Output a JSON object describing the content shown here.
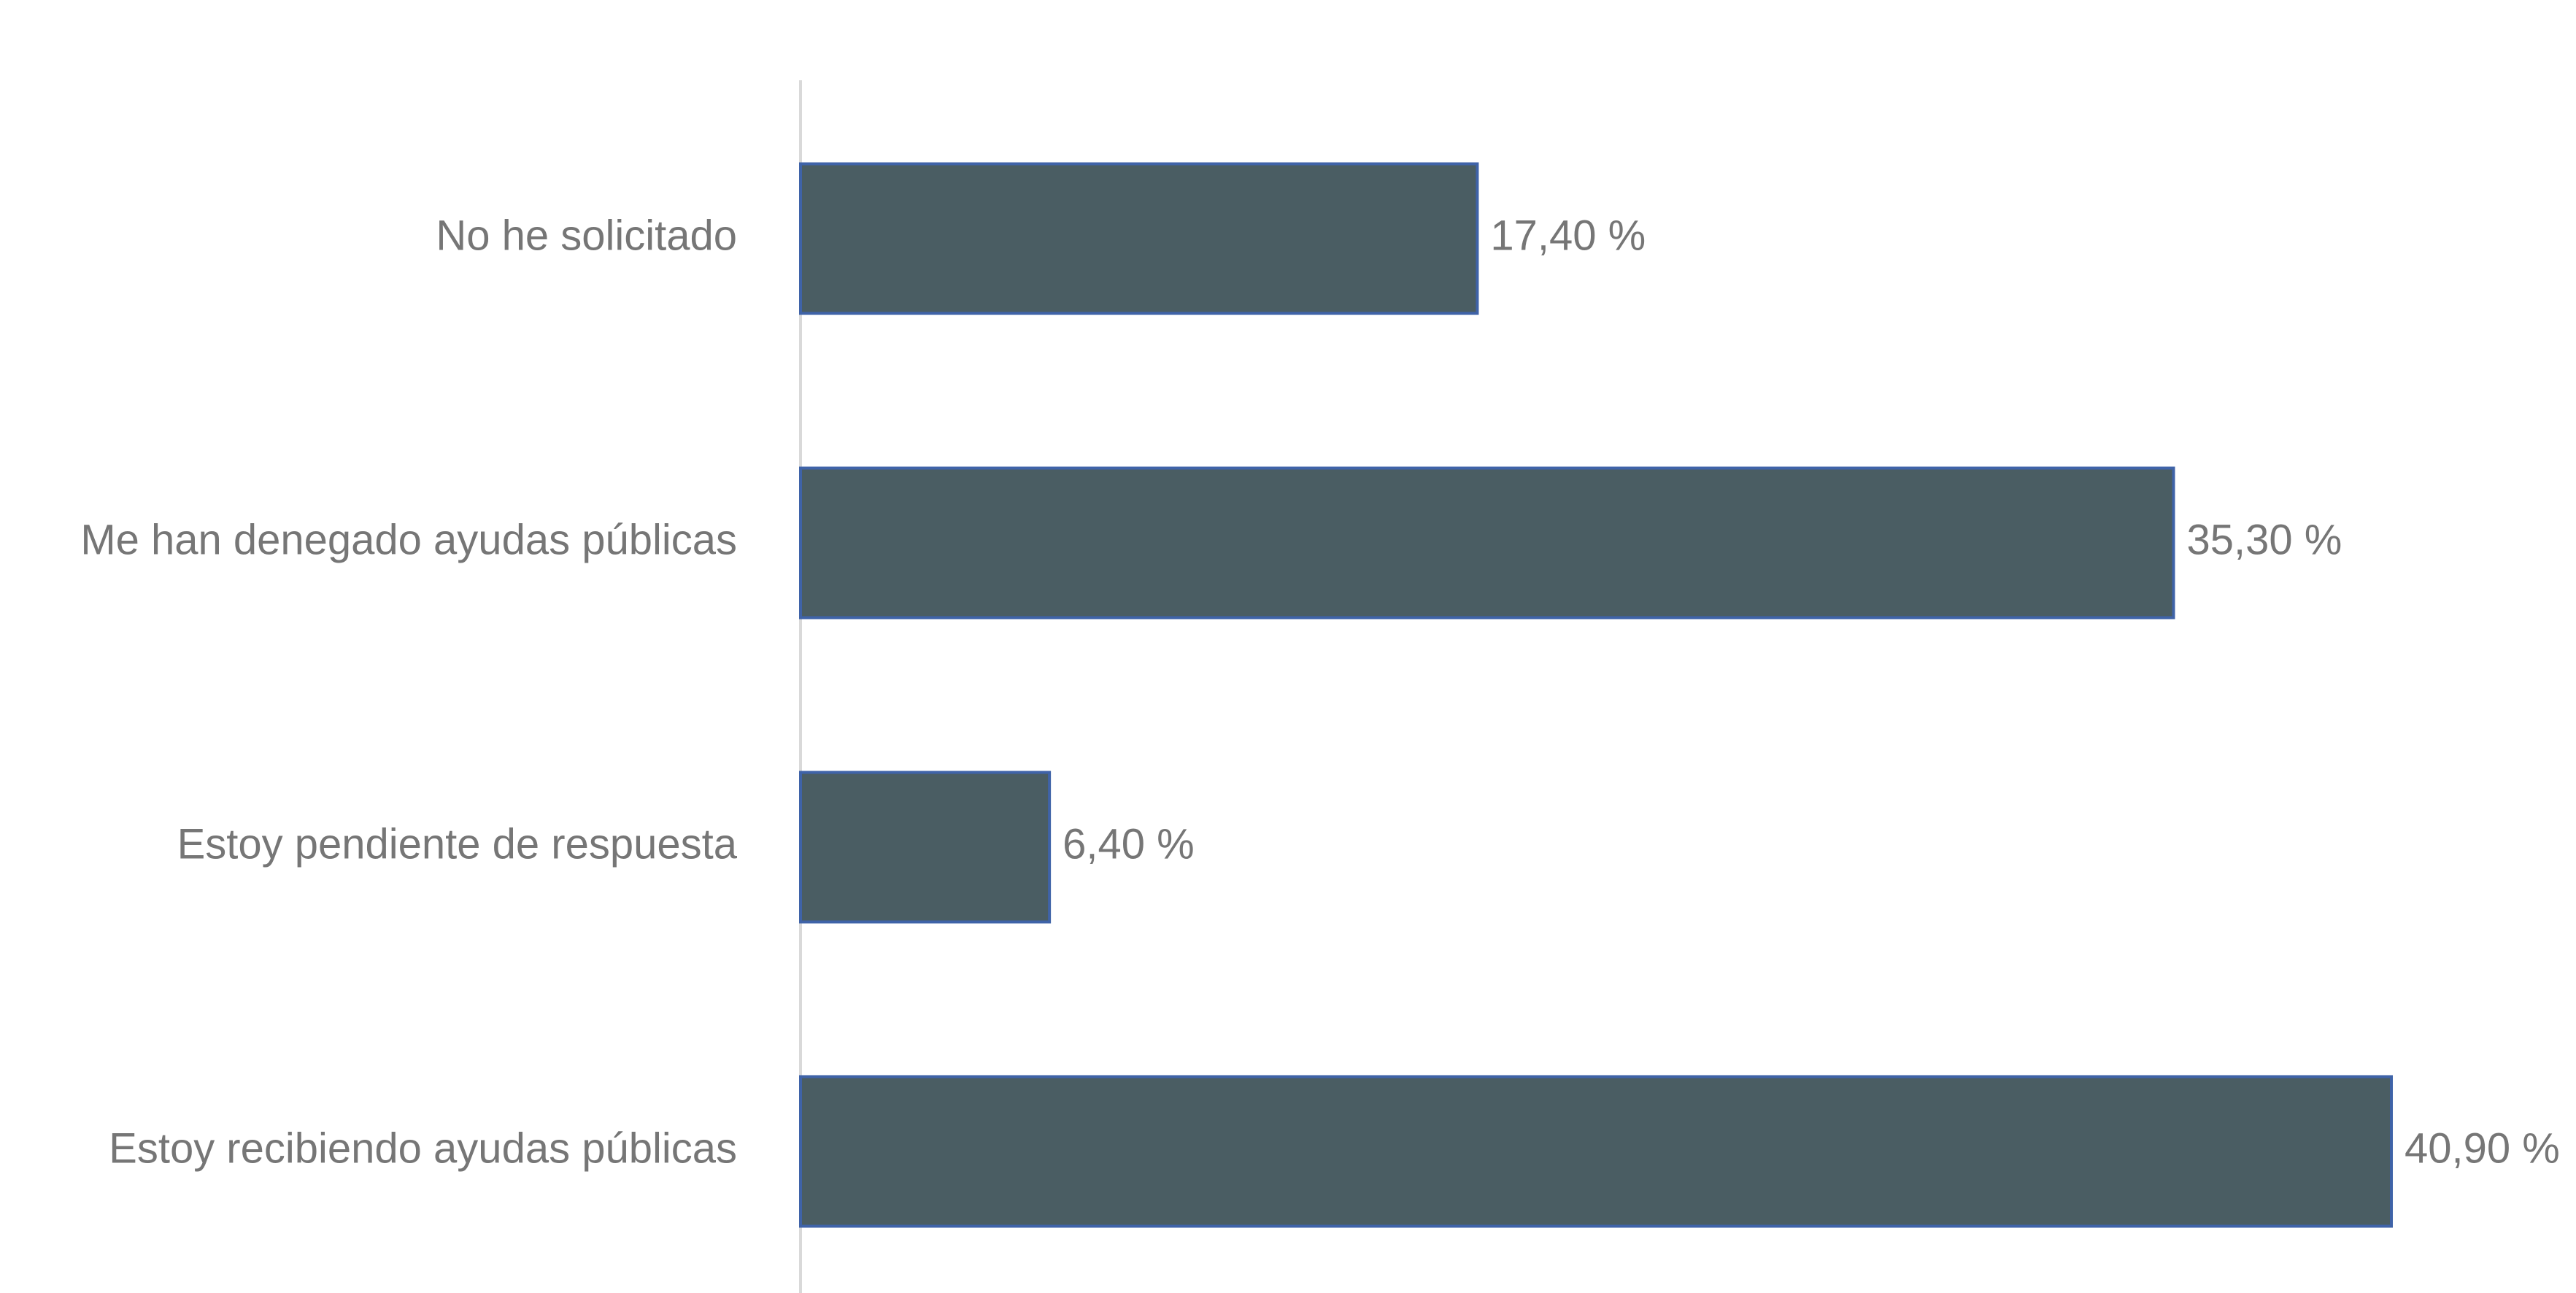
{
  "chart_data": {
    "type": "bar",
    "orientation": "horizontal",
    "categories": [
      "No he solicitado",
      "Me han denegado ayudas públicas",
      "Estoy pendiente de respuesta",
      "Estoy recibiendo ayudas públicas"
    ],
    "values": [
      17.4,
      35.3,
      6.4,
      40.9
    ],
    "value_labels": [
      "17,40 %",
      "35,30 %",
      "6,40 %",
      "40,90 %"
    ],
    "unit": "%",
    "title": "",
    "xlabel": "",
    "ylabel": "",
    "xlim": [
      0,
      40.9
    ],
    "grid": false,
    "legend": "none",
    "colors": {
      "bar_fill": "#4a5d63",
      "bar_stroke": "#3f63a8",
      "axis": "#d9d9d9",
      "text": "#767676"
    }
  }
}
